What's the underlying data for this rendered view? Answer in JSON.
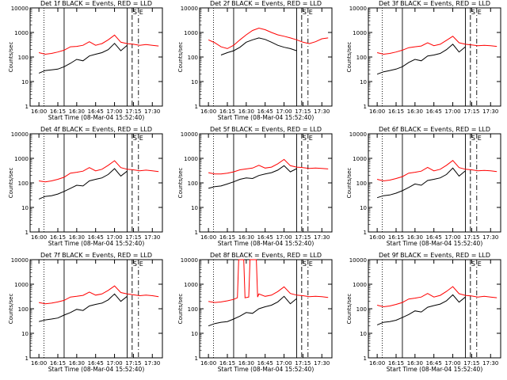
{
  "chart_data": [
    {
      "type": "line",
      "title": "Det 1f BLACK = Events, RED = LLD",
      "ylabel": "Counts/sec",
      "xlabel": "Start Time (08-Mar-04 15:52:40)",
      "xticks": [
        "16:00",
        "16:15",
        "16:30",
        "16:45",
        "17:00",
        "17:15",
        "17:30"
      ],
      "yticks": [
        "1",
        "10",
        "100",
        "1000",
        "10000"
      ],
      "yscale": "log",
      "ylim": [
        1,
        10000
      ],
      "xlim_minutes": [
        -7,
        98
      ],
      "corner_labels": [
        "S",
        "E"
      ],
      "series": [
        {
          "color": "#000000",
          "x": [
            0,
            5,
            10,
            15,
            20,
            25,
            30,
            35,
            40,
            45,
            50,
            55,
            60,
            65,
            70
          ],
          "y": [
            22,
            28,
            30,
            32,
            40,
            55,
            80,
            70,
            110,
            130,
            150,
            200,
            360,
            180,
            300
          ]
        },
        {
          "color": "#ff0000",
          "x": [
            0,
            5,
            10,
            15,
            20,
            25,
            30,
            35,
            40,
            45,
            50,
            55,
            60,
            65,
            70,
            75,
            80,
            85,
            90,
            95
          ],
          "y": [
            150,
            130,
            140,
            160,
            190,
            260,
            270,
            300,
            420,
            300,
            350,
            500,
            780,
            400,
            350,
            330,
            300,
            320,
            300,
            280
          ]
        }
      ]
    },
    {
      "type": "line",
      "title": "Det 2f BLACK = Events, RED = LLD",
      "ylabel": "Counts/sec",
      "xlabel": "Start Time (08-Mar-04 15:52:40)",
      "xticks": [
        "16:00",
        "16:15",
        "16:30",
        "16:45",
        "17:00",
        "17:15",
        "17:30"
      ],
      "yticks": [
        "1",
        "10",
        "100",
        "1000",
        "10000"
      ],
      "yscale": "log",
      "ylim": [
        1,
        10000
      ],
      "xlim_minutes": [
        -7,
        98
      ],
      "corner_labels": [
        "S",
        "E"
      ],
      "series": [
        {
          "color": "#000000",
          "x": [
            10,
            15,
            20,
            25,
            30,
            35,
            40,
            45,
            50,
            55,
            60,
            65,
            70
          ],
          "y": [
            120,
            150,
            180,
            250,
            400,
            500,
            600,
            520,
            400,
            300,
            250,
            220,
            180
          ]
        },
        {
          "color": "#ff0000",
          "x": [
            0,
            5,
            10,
            15,
            20,
            25,
            30,
            35,
            40,
            45,
            50,
            55,
            60,
            65,
            70,
            75,
            80,
            85,
            90,
            95
          ],
          "y": [
            500,
            380,
            260,
            220,
            300,
            500,
            800,
            1200,
            1500,
            1300,
            1000,
            800,
            700,
            600,
            500,
            400,
            350,
            420,
            550,
            600
          ]
        }
      ]
    },
    {
      "type": "line",
      "title": "Det 3f BLACK = Events, RED = LLD",
      "ylabel": "Counts/sec",
      "xlabel": "",
      "xticks": [
        "16:00",
        "16:15",
        "16:30",
        "16:45",
        "17:00",
        "17:15",
        "17:30"
      ],
      "yticks": [
        "1",
        "10",
        "100",
        "1000",
        "10000"
      ],
      "yscale": "log",
      "ylim": [
        1,
        10000
      ],
      "xlim_minutes": [
        -7,
        98
      ],
      "corner_labels": [
        "S",
        "E"
      ],
      "series": [
        {
          "color": "#000000",
          "x": [
            0,
            5,
            10,
            15,
            20,
            25,
            30,
            35,
            40,
            45,
            50,
            55,
            60,
            65,
            70
          ],
          "y": [
            20,
            25,
            28,
            32,
            40,
            60,
            80,
            70,
            110,
            120,
            140,
            200,
            330,
            160,
            260
          ]
        },
        {
          "color": "#ff0000",
          "x": [
            0,
            5,
            10,
            15,
            20,
            25,
            30,
            35,
            40,
            45,
            50,
            55,
            60,
            65,
            70,
            75,
            80,
            85,
            90,
            95
          ],
          "y": [
            150,
            130,
            140,
            160,
            190,
            240,
            260,
            280,
            380,
            290,
            330,
            480,
            700,
            380,
            330,
            310,
            290,
            300,
            290,
            270
          ]
        }
      ]
    },
    {
      "type": "line",
      "title": "Det 4f BLACK = Events, RED = LLD",
      "ylabel": "Counts/sec",
      "xlabel": "Start Time (08-Mar-04 15:52:40)",
      "xticks": [
        "16:00",
        "16:15",
        "16:30",
        "16:45",
        "17:00",
        "17:15",
        "17:30"
      ],
      "yticks": [
        "1",
        "10",
        "100",
        "1000",
        "10000"
      ],
      "yscale": "log",
      "ylim": [
        1,
        10000
      ],
      "xlim_minutes": [
        -7,
        98
      ],
      "corner_labels": [
        "S",
        "E"
      ],
      "series": [
        {
          "color": "#000000",
          "x": [
            0,
            5,
            10,
            15,
            20,
            25,
            30,
            35,
            40,
            45,
            50,
            55,
            60,
            65,
            70
          ],
          "y": [
            22,
            28,
            30,
            35,
            45,
            60,
            80,
            75,
            120,
            140,
            160,
            220,
            380,
            190,
            300
          ]
        },
        {
          "color": "#ff0000",
          "x": [
            0,
            5,
            10,
            15,
            20,
            25,
            30,
            35,
            40,
            45,
            50,
            55,
            60,
            65,
            70,
            75,
            80,
            85,
            90,
            95
          ],
          "y": [
            120,
            110,
            120,
            140,
            170,
            250,
            270,
            300,
            420,
            310,
            360,
            520,
            800,
            420,
            360,
            340,
            310,
            330,
            310,
            290
          ]
        }
      ]
    },
    {
      "type": "line",
      "title": "Det 5f BLACK = Events, RED = LLD",
      "ylabel": "Counts/sec",
      "xlabel": "Start Time (08-Mar-04 15:52:40)",
      "xticks": [
        "16:00",
        "16:15",
        "16:30",
        "16:45",
        "17:00",
        "17:15",
        "17:30"
      ],
      "yticks": [
        "1",
        "10",
        "100",
        "1000",
        "10000"
      ],
      "yscale": "log",
      "ylim": [
        1,
        10000
      ],
      "xlim_minutes": [
        -7,
        98
      ],
      "corner_labels": [
        "S",
        "E"
      ],
      "series": [
        {
          "color": "#000000",
          "x": [
            0,
            5,
            10,
            15,
            20,
            25,
            30,
            35,
            40,
            45,
            50,
            55,
            60,
            65,
            70
          ],
          "y": [
            60,
            70,
            75,
            90,
            110,
            140,
            160,
            150,
            200,
            230,
            260,
            330,
            500,
            280,
            380
          ]
        },
        {
          "color": "#ff0000",
          "x": [
            0,
            5,
            10,
            15,
            20,
            25,
            30,
            35,
            40,
            45,
            50,
            55,
            60,
            65,
            70,
            75,
            80,
            85,
            90,
            95
          ],
          "y": [
            260,
            230,
            230,
            250,
            280,
            340,
            370,
            400,
            520,
            400,
            440,
            600,
            900,
            500,
            440,
            420,
            390,
            400,
            390,
            370
          ]
        }
      ]
    },
    {
      "type": "line",
      "title": "Det 6f BLACK = Events, RED = LLD",
      "ylabel": "Counts/sec",
      "xlabel": "Start Time (08-Mar-04 15:52:40)",
      "xticks": [
        "16:00",
        "16:15",
        "16:30",
        "16:45",
        "17:00",
        "17:15",
        "17:30"
      ],
      "yticks": [
        "1",
        "10",
        "100",
        "1000",
        "10000"
      ],
      "yscale": "log",
      "ylim": [
        1,
        10000
      ],
      "xlim_minutes": [
        -7,
        98
      ],
      "corner_labels": [
        "S",
        "E"
      ],
      "series": [
        {
          "color": "#000000",
          "x": [
            0,
            5,
            10,
            15,
            20,
            25,
            30,
            35,
            40,
            45,
            50,
            55,
            60,
            65,
            70
          ],
          "y": [
            25,
            30,
            32,
            38,
            48,
            65,
            90,
            80,
            125,
            140,
            160,
            220,
            400,
            190,
            310
          ]
        },
        {
          "color": "#ff0000",
          "x": [
            0,
            5,
            10,
            15,
            20,
            25,
            30,
            35,
            40,
            45,
            50,
            55,
            60,
            65,
            70,
            75,
            80,
            85,
            90,
            95
          ],
          "y": [
            140,
            120,
            130,
            150,
            180,
            250,
            270,
            300,
            430,
            310,
            360,
            520,
            820,
            420,
            360,
            340,
            310,
            320,
            310,
            290
          ]
        }
      ]
    },
    {
      "type": "line",
      "title": "Det 7f BLACK = Events, RED = LLD",
      "ylabel": "Counts/sec",
      "xlabel": "Start Time (08-Mar-04 15:52:40)",
      "xticks": [
        "16:00",
        "16:15",
        "16:30",
        "16:45",
        "17:00",
        "17:15",
        "17:30"
      ],
      "yticks": [
        "1",
        "10",
        "100",
        "1000",
        "10000"
      ],
      "yscale": "log",
      "ylim": [
        1,
        10000
      ],
      "xlim_minutes": [
        -7,
        98
      ],
      "corner_labels": [
        "S",
        "E"
      ],
      "series": [
        {
          "color": "#000000",
          "x": [
            0,
            5,
            10,
            15,
            20,
            25,
            30,
            35,
            40,
            45,
            50,
            55,
            60,
            65,
            70
          ],
          "y": [
            30,
            35,
            38,
            42,
            55,
            70,
            95,
            85,
            130,
            150,
            170,
            230,
            400,
            200,
            320
          ]
        },
        {
          "color": "#ff0000",
          "x": [
            0,
            5,
            10,
            15,
            20,
            25,
            30,
            35,
            40,
            45,
            50,
            55,
            60,
            65,
            70,
            75,
            80,
            85,
            90,
            95
          ],
          "y": [
            180,
            160,
            170,
            190,
            220,
            300,
            320,
            350,
            480,
            360,
            400,
            560,
            850,
            460,
            400,
            370,
            340,
            360,
            340,
            310
          ]
        }
      ]
    },
    {
      "type": "line",
      "title": "Det 8f BLACK = Events, RED = LLD",
      "ylabel": "Counts/sec",
      "xlabel": "Start Time (08-Mar-04 15:52:40)",
      "xticks": [
        "16:00",
        "16:15",
        "16:30",
        "16:45",
        "17:00",
        "17:15",
        "17:30"
      ],
      "yticks": [
        "1",
        "10",
        "100",
        "1000",
        "10000"
      ],
      "yscale": "log",
      "ylim": [
        1,
        10000
      ],
      "xlim_minutes": [
        -7,
        98
      ],
      "corner_labels": [
        "S",
        "E"
      ],
      "series": [
        {
          "color": "#000000",
          "x": [
            0,
            5,
            10,
            15,
            20,
            25,
            30,
            35,
            40,
            45,
            50,
            55,
            60,
            65,
            70
          ],
          "y": [
            20,
            25,
            28,
            30,
            38,
            50,
            70,
            65,
            100,
            120,
            140,
            190,
            320,
            160,
            260
          ]
        },
        {
          "color": "#ff0000",
          "x": [
            0,
            5,
            10,
            15,
            20,
            23,
            24,
            28,
            29,
            32,
            33,
            38,
            39,
            40,
            45,
            50,
            55,
            60,
            65,
            70,
            75,
            80,
            85,
            90,
            95
          ],
          "y": [
            200,
            180,
            190,
            210,
            240,
            280,
            10000,
            10000,
            280,
            300,
            10000,
            10000,
            300,
            400,
            320,
            360,
            500,
            780,
            420,
            360,
            340,
            310,
            320,
            310,
            290
          ]
        }
      ]
    },
    {
      "type": "line",
      "title": "Det 9f BLACK = Events, RED = LLD",
      "ylabel": "Counts/sec",
      "xlabel": "Start Time (08-Mar-04 15:52:40)",
      "xticks": [
        "16:00",
        "16:15",
        "16:30",
        "16:45",
        "17:00",
        "17:15",
        "17:30"
      ],
      "yticks": [
        "1",
        "10",
        "100",
        "1000",
        "10000"
      ],
      "yscale": "log",
      "ylim": [
        1,
        10000
      ],
      "xlim_minutes": [
        -7,
        98
      ],
      "corner_labels": [
        "S",
        "E"
      ],
      "series": [
        {
          "color": "#000000",
          "x": [
            0,
            5,
            10,
            15,
            20,
            25,
            30,
            35,
            40,
            45,
            50,
            55,
            60,
            65,
            70
          ],
          "y": [
            22,
            28,
            30,
            34,
            44,
            58,
            82,
            74,
            115,
            135,
            155,
            210,
            370,
            185,
            300
          ]
        },
        {
          "color": "#ff0000",
          "x": [
            0,
            5,
            10,
            15,
            20,
            25,
            30,
            35,
            40,
            45,
            50,
            55,
            60,
            65,
            70,
            75,
            80,
            85,
            90,
            95
          ],
          "y": [
            140,
            120,
            130,
            150,
            180,
            250,
            270,
            300,
            420,
            300,
            350,
            510,
            800,
            410,
            350,
            330,
            300,
            320,
            300,
            280
          ]
        }
      ]
    }
  ]
}
